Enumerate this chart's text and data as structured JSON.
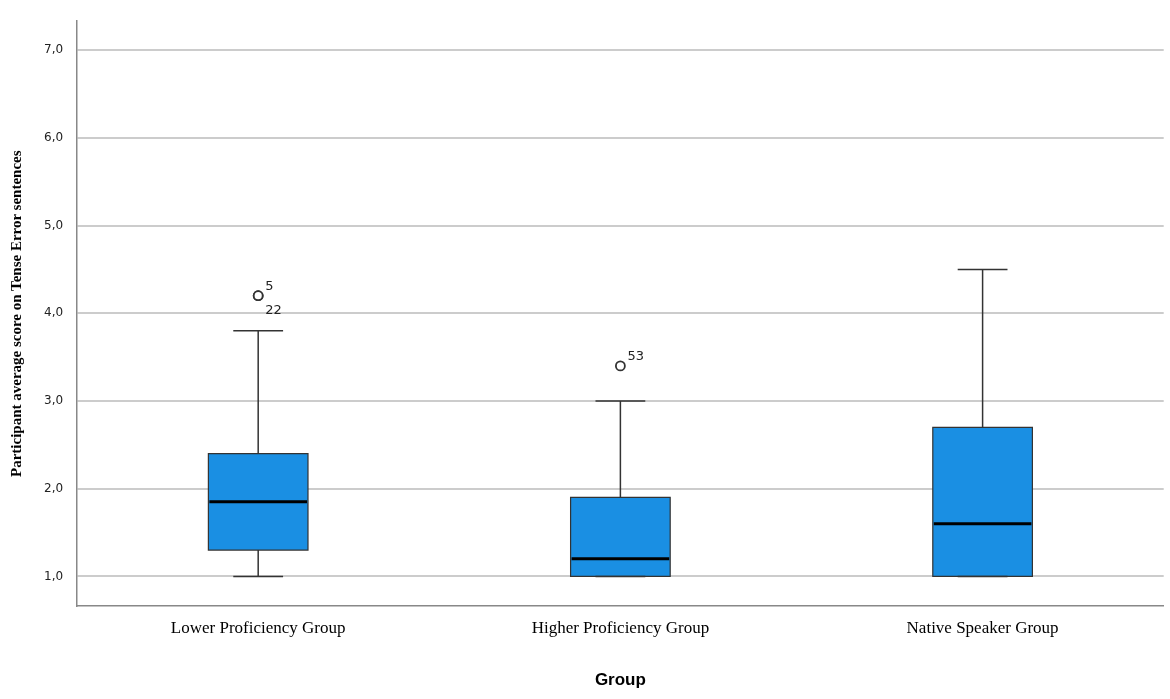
{
  "chart_data": {
    "type": "box",
    "xlabel": "Group",
    "ylabel": "Participant average score on Tense Error sentences",
    "categories": [
      "Lower Proficiency Group",
      "Higher Proficiency Group",
      "Native Speaker Group"
    ],
    "color": "#1a8fe3",
    "boxes": [
      {
        "low": 1.0,
        "q1": 1.3,
        "median": 1.85,
        "q3": 2.4,
        "high": 3.8,
        "outliers": [
          4.2,
          4.2
        ]
      },
      {
        "low": 1.0,
        "q1": 1.0,
        "median": 1.2,
        "q3": 1.9,
        "high": 3.0,
        "outliers": [
          3.4
        ]
      },
      {
        "low": 1.0,
        "q1": 1.0,
        "median": 1.6,
        "q3": 2.7,
        "high": 4.5
      }
    ],
    "ylim": [
      0.66,
      7.33
    ],
    "yticks": [
      {
        "value": 1,
        "label": "1,0"
      },
      {
        "value": 2,
        "label": "2,0"
      },
      {
        "value": 3,
        "label": "3,0"
      },
      {
        "value": 4,
        "label": "4,0"
      },
      {
        "value": 5,
        "label": "5,0"
      },
      {
        "value": 6,
        "label": "6,0"
      },
      {
        "value": 7,
        "label": "7,0"
      }
    ],
    "grid": "y",
    "legend": false,
    "annotations": [
      "5",
      "22",
      "53"
    ]
  }
}
